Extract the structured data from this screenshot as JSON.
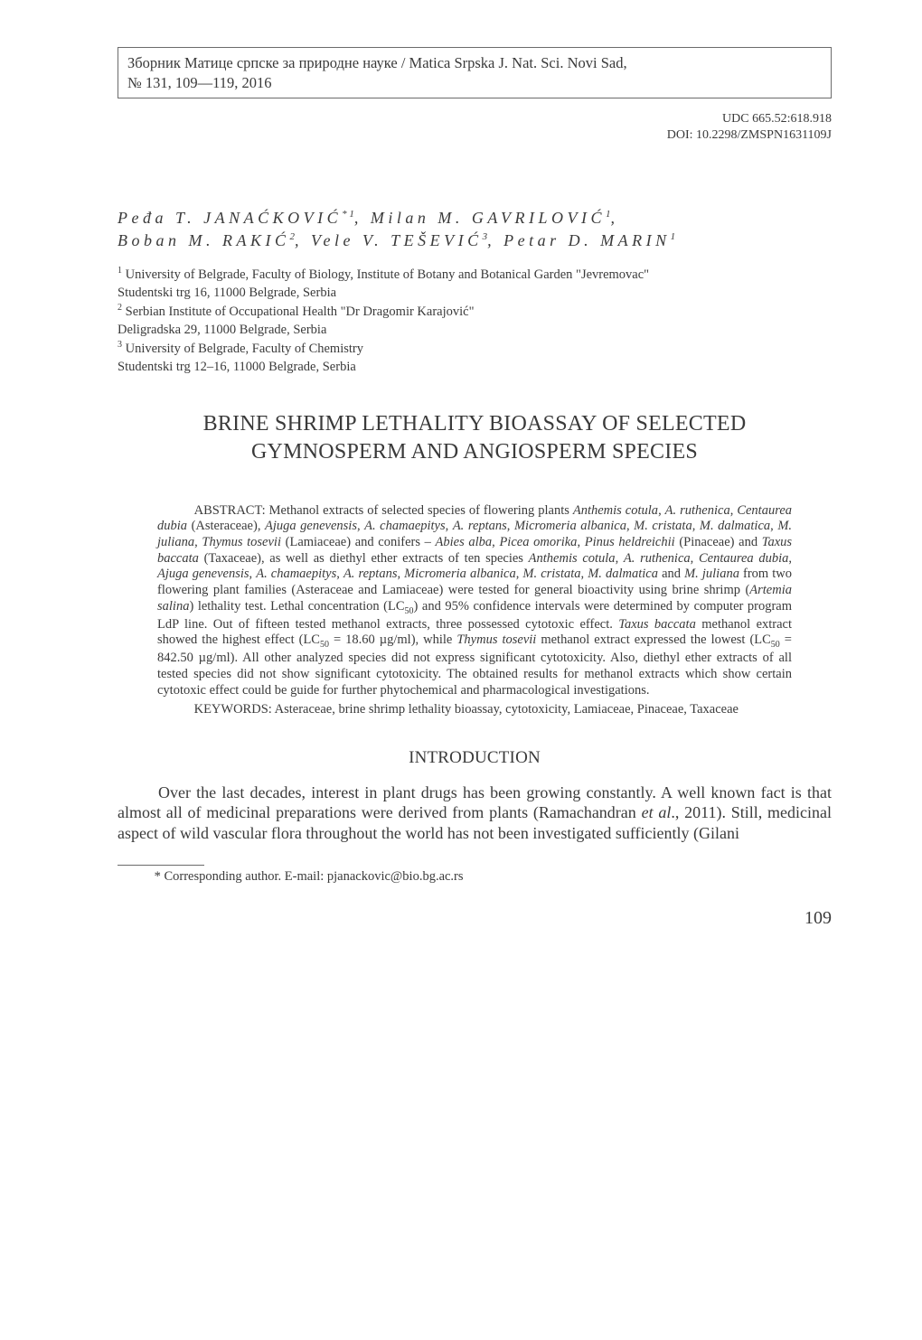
{
  "header_box": {
    "line1": "Зборник Матице српске за природне науке / Matica Srpska J. Nat. Sci. Novi Sad,",
    "line2": "№ 131, 109—119, 2016"
  },
  "classification": {
    "udc": "UDC 665.52:618.918",
    "doi": "DOI: 10.2298/ZMSPN1631109J"
  },
  "authors": {
    "line1_a": "Peđa T. JANAĆKOVIĆ",
    "line1_a_sup": "* 1",
    "line1_b": ", Milan M. GAVRILOVIĆ",
    "line1_b_sup": "1",
    "line1_c": ",",
    "line2_a": "Boban M. RAKIĆ",
    "line2_a_sup": "2",
    "line2_b": ", Vele V. TEŠEVIĆ",
    "line2_b_sup": "3",
    "line2_c": ", Petar D. MARIN",
    "line2_c_sup": "1"
  },
  "affiliations": {
    "a1_sup": "1",
    "a1_l1": " University of Belgrade, Faculty of Biology, Institute of Botany and Botanical Garden \"Jevremovac\"",
    "a1_l2": "Studentski trg 16, 11000 Belgrade, Serbia",
    "a2_sup": "2",
    "a2_l1": " Serbian Institute of Occupational Health \"Dr Dragomir Karajović\"",
    "a2_l2": "Deligradska 29, 11000 Belgrade, Serbia",
    "a3_sup": "3",
    "a3_l1": " University of Belgrade, Faculty of Chemistry",
    "a3_l2": "Studentski trg 12–16, 11000 Belgrade, Serbia"
  },
  "title": {
    "l1": "BRINE SHRIMP LETHALITY BIOASSAY OF SELECTED",
    "l2": "GYMNOSPERM AND ANGIOSPERM SPECIES"
  },
  "abstract": {
    "label": "ABSTRACT: ",
    "t1": "Methanol extracts of selected species of flowering plants ",
    "i1": "Anthemis cotula",
    "s1": ", ",
    "i2": "A. ruthenica",
    "s2": ", ",
    "i3": "Centaurea dubia",
    "s3": " (Asteraceae), ",
    "i4": "Ajuga genevensis",
    "s4": ", ",
    "i5": "A. chamaepitys",
    "s5": ", ",
    "i6": "A. reptans",
    "s6": ", ",
    "i7": "Micromeria albanica",
    "s7": ", ",
    "i8": "M. cristata",
    "s8": ", ",
    "i9": "M. dalmatica",
    "s9": ", ",
    "i10": "M. juliana",
    "s10": ", ",
    "i11": "Thymus tosevii",
    "s11": " (La­miaceae) and conifers – ",
    "i12": "Abies alba",
    "s12": ", ",
    "i13": "Picea omorika",
    "s13": ", ",
    "i14": "Pinus heldreichii",
    "s14": " (Pinaceae) and ",
    "i15": "Taxus baccata",
    "s15": " (Taxaceae), as well as diethyl ether extracts of ten species ",
    "i16": "Anthemis cotula",
    "s16": ", ",
    "i17": "A. ruthenica",
    "s17": ", ",
    "i18": "Centaurea dubia",
    "s18": ", ",
    "i19": "Ajuga genevensis",
    "s19": ", ",
    "i20": "A. chamaepitys",
    "s20": ", ",
    "i21": "A. reptans",
    "s21": ", ",
    "i22": "Micromeria albanica",
    "s22": ", ",
    "i23": "M. cristata",
    "s23": ", ",
    "i24": "M. dalmatica",
    "s24": " and ",
    "i25": "M. juliana",
    "s25": " from two flowering plant families (Asteraceae and Lamiaceae) were tested for general bioactivity using brine shrimp (",
    "i26": "Artemia salina",
    "s26": ") lethality test. Lethal concentration (LC",
    "sub1": "50",
    "s27": ") and 95% confidence intervals were determined by com­puter program LdP line. Out of fifteen tested methanol extracts, three possessed cytotoxic effect. ",
    "i27": "Taxus baccata",
    "s28": " methanol extract showed the highest effect (LC",
    "sub2": "50",
    "s29": " = 18.60 µg/ml), while ",
    "i28": "Thymus tosevii",
    "s30": " methanol extract expressed the lowest (LC",
    "sub3": "50",
    "s31": " = 842.50 µg/ml). All other analyzed species did not express significant cytotoxicity. Also, diethyl ether extracts of all tested species did not show significant cytotoxicity. The obtained results for methanol extracts which show certain cytotoxic effect could be guide for further phytochemical and pharma­cological investigations."
  },
  "keywords": {
    "label": "KEYWORDS: ",
    "text": "Asteraceae, brine shrimp lethality bioassay, cytotoxicity, Lamiaceae, Pinaceae, Taxaceae"
  },
  "section_heading": "INTRODUCTION",
  "intro": {
    "t1": "Over the last decades, interest in plant drugs has been growing constantly. A well known fact is that almost all of medicinal preparations were derived from plants (Ramachandran ",
    "i1": "et al",
    "t2": "., 2011). Still, medicinal aspect of wild vas­cular flora throughout the world has not been investigated sufficiently (Gilani"
  },
  "footnote": "* Corresponding author. E-mail: pjanackovic@bio.bg.ac.rs",
  "page_number": "109"
}
